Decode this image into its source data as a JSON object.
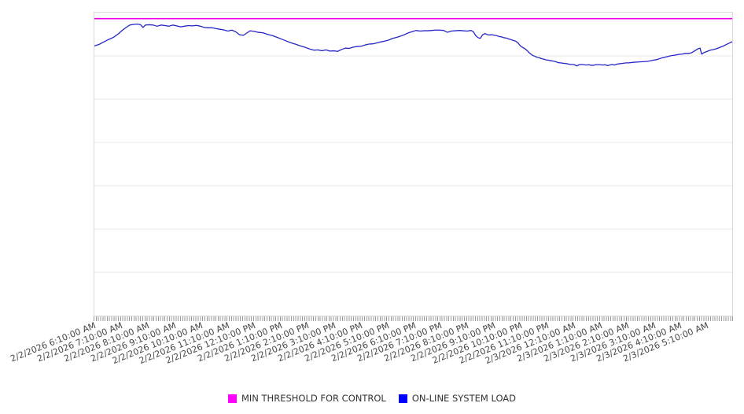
{
  "colors": {
    "background": "#ffffff",
    "grid": "#e9e9e9",
    "axis_border": "#d9d9d9",
    "minor_tick": "#9a9a9a",
    "axis_label": "#474747",
    "legend_text": "#333333",
    "threshold_line": "#ee00ee",
    "load_line": "#2525c9",
    "legend_swatch_threshold": "#ff00ff",
    "legend_swatch_load": "#0000ff"
  },
  "legend": {
    "items": [
      {
        "label": "MIN THRESHOLD FOR CONTROL",
        "color": "#ff00ff"
      },
      {
        "label": "ON-LINE SYSTEM LOAD",
        "color": "#0000ff"
      }
    ]
  },
  "chart_data": {
    "type": "line",
    "title": "",
    "xlabel": "",
    "ylabel": "",
    "legend_position": "bottom-center",
    "grid": "horizontal-only",
    "y_axis": {
      "tick_labels_visible": false,
      "grid_divisions": 7,
      "range_pct": [
        0,
        100
      ]
    },
    "x_axis": {
      "tick_rotation_deg": -22,
      "minor_ticks_per_hour": 12,
      "hours_span": 24,
      "labels": [
        "2/2/2026 6:10:00 AM",
        "2/2/2026 7:10:00 AM",
        "2/2/2026 8:10:00 AM",
        "2/2/2026 9:10:00 AM",
        "2/2/2026 10:10:00 AM",
        "2/2/2026 11:10:00 AM",
        "2/2/2026 12:10:00 PM",
        "2/2/2026 1:10:00 PM",
        "2/2/2026 2:10:00 PM",
        "2/2/2026 3:10:00 PM",
        "2/2/2026 4:10:00 PM",
        "2/2/2026 5:10:00 PM",
        "2/2/2026 6:10:00 PM",
        "2/2/2026 7:10:00 PM",
        "2/2/2026 8:10:00 PM",
        "2/2/2026 9:10:00 PM",
        "2/2/2026 10:10:00 PM",
        "2/2/2026 11:10:00 PM",
        "2/3/2026 12:10:00 AM",
        "2/3/2026 1:10:00 AM",
        "2/3/2026 2:10:00 AM",
        "2/3/2026 3:10:00 AM",
        "2/3/2026 4:10:00 AM",
        "2/3/2026 5:10:00 AM"
      ]
    },
    "series": [
      {
        "name": "MIN THRESHOLD FOR CONTROL",
        "type": "threshold",
        "color": "#ee00ee",
        "value_pct": 98.0,
        "note": "horizontal line; y-axis has no printed scale, values are percent of plot height from bottom"
      },
      {
        "name": "ON-LINE SYSTEM LOAD",
        "type": "line",
        "color": "#2525c9",
        "unit": "pct of plot height (hours since 6:10 AM 2/2/2026, est. from pixels)",
        "points": [
          [
            0,
            89.0
          ],
          [
            0.18,
            89.5
          ],
          [
            0.35,
            90.3
          ],
          [
            0.53,
            91.1
          ],
          [
            0.71,
            91.8
          ],
          [
            0.89,
            92.9
          ],
          [
            1.06,
            94.2
          ],
          [
            1.21,
            95.2
          ],
          [
            1.33,
            95.9
          ],
          [
            1.48,
            96.1
          ],
          [
            1.62,
            96.2
          ],
          [
            1.74,
            96.0
          ],
          [
            1.83,
            95.1
          ],
          [
            1.92,
            95.9
          ],
          [
            2.07,
            96.0
          ],
          [
            2.21,
            95.9
          ],
          [
            2.36,
            95.5
          ],
          [
            2.51,
            95.9
          ],
          [
            2.66,
            95.7
          ],
          [
            2.8,
            95.5
          ],
          [
            2.95,
            95.9
          ],
          [
            3.1,
            95.6
          ],
          [
            3.25,
            95.3
          ],
          [
            3.39,
            95.5
          ],
          [
            3.54,
            95.7
          ],
          [
            3.69,
            95.6
          ],
          [
            3.84,
            95.8
          ],
          [
            3.99,
            95.5
          ],
          [
            4.13,
            95.1
          ],
          [
            4.28,
            95.0
          ],
          [
            4.43,
            95.0
          ],
          [
            4.58,
            94.7
          ],
          [
            4.72,
            94.5
          ],
          [
            4.87,
            94.3
          ],
          [
            5.02,
            93.9
          ],
          [
            5.17,
            94.2
          ],
          [
            5.31,
            93.7
          ],
          [
            5.46,
            92.7
          ],
          [
            5.61,
            92.5
          ],
          [
            5.76,
            93.4
          ],
          [
            5.87,
            94.0
          ],
          [
            6.02,
            93.8
          ],
          [
            6.17,
            93.5
          ],
          [
            6.35,
            93.3
          ],
          [
            6.52,
            92.8
          ],
          [
            6.7,
            92.4
          ],
          [
            6.88,
            91.8
          ],
          [
            7.06,
            91.2
          ],
          [
            7.23,
            90.6
          ],
          [
            7.41,
            90.0
          ],
          [
            7.59,
            89.5
          ],
          [
            7.76,
            89.0
          ],
          [
            7.94,
            88.5
          ],
          [
            8.12,
            87.9
          ],
          [
            8.27,
            87.6
          ],
          [
            8.41,
            87.7
          ],
          [
            8.56,
            87.4
          ],
          [
            8.71,
            87.7
          ],
          [
            8.86,
            87.3
          ],
          [
            9.0,
            87.4
          ],
          [
            9.15,
            87.2
          ],
          [
            9.3,
            87.8
          ],
          [
            9.45,
            88.3
          ],
          [
            9.59,
            88.2
          ],
          [
            9.74,
            88.6
          ],
          [
            9.89,
            88.8
          ],
          [
            10.04,
            88.9
          ],
          [
            10.18,
            89.3
          ],
          [
            10.33,
            89.6
          ],
          [
            10.48,
            89.7
          ],
          [
            10.63,
            90.0
          ],
          [
            10.77,
            90.3
          ],
          [
            10.92,
            90.6
          ],
          [
            11.07,
            90.9
          ],
          [
            11.22,
            91.5
          ],
          [
            11.37,
            91.8
          ],
          [
            11.51,
            92.2
          ],
          [
            11.66,
            92.7
          ],
          [
            11.81,
            93.3
          ],
          [
            11.96,
            93.7
          ],
          [
            12.1,
            94.1
          ],
          [
            12.25,
            93.9
          ],
          [
            12.4,
            94.0
          ],
          [
            12.55,
            94.0
          ],
          [
            12.69,
            94.1
          ],
          [
            12.84,
            94.2
          ],
          [
            12.99,
            94.2
          ],
          [
            13.14,
            94.1
          ],
          [
            13.28,
            93.5
          ],
          [
            13.43,
            93.9
          ],
          [
            13.58,
            94.0
          ],
          [
            13.73,
            94.1
          ],
          [
            13.87,
            94.0
          ],
          [
            14.02,
            93.9
          ],
          [
            14.17,
            94.1
          ],
          [
            14.26,
            93.7
          ],
          [
            14.35,
            92.4
          ],
          [
            14.44,
            91.7
          ],
          [
            14.52,
            91.5
          ],
          [
            14.61,
            92.7
          ],
          [
            14.7,
            93.1
          ],
          [
            14.79,
            92.7
          ],
          [
            14.88,
            92.6
          ],
          [
            14.97,
            92.7
          ],
          [
            15.06,
            92.5
          ],
          [
            15.14,
            92.4
          ],
          [
            15.23,
            92.1
          ],
          [
            15.32,
            92.0
          ],
          [
            15.41,
            91.7
          ],
          [
            15.5,
            91.6
          ],
          [
            15.59,
            91.3
          ],
          [
            15.67,
            91.1
          ],
          [
            15.76,
            90.8
          ],
          [
            15.85,
            90.6
          ],
          [
            15.94,
            90.0
          ],
          [
            16.03,
            89.0
          ],
          [
            16.12,
            88.5
          ],
          [
            16.21,
            88.0
          ],
          [
            16.3,
            87.3
          ],
          [
            16.38,
            86.6
          ],
          [
            16.47,
            86.0
          ],
          [
            16.56,
            85.6
          ],
          [
            16.65,
            85.3
          ],
          [
            16.74,
            85.1
          ],
          [
            16.83,
            84.8
          ],
          [
            16.92,
            84.6
          ],
          [
            17.0,
            84.4
          ],
          [
            17.09,
            84.3
          ],
          [
            17.18,
            84.1
          ],
          [
            17.27,
            84.0
          ],
          [
            17.36,
            83.8
          ],
          [
            17.45,
            83.5
          ],
          [
            17.54,
            83.4
          ],
          [
            17.62,
            83.3
          ],
          [
            17.71,
            83.2
          ],
          [
            17.8,
            83.1
          ],
          [
            17.89,
            82.9
          ],
          [
            17.98,
            82.9
          ],
          [
            18.07,
            82.8
          ],
          [
            18.15,
            82.4
          ],
          [
            18.24,
            82.8
          ],
          [
            18.33,
            82.9
          ],
          [
            18.42,
            82.8
          ],
          [
            18.51,
            82.7
          ],
          [
            18.6,
            82.8
          ],
          [
            18.69,
            82.6
          ],
          [
            18.77,
            82.6
          ],
          [
            18.86,
            82.8
          ],
          [
            18.95,
            82.8
          ],
          [
            19.04,
            82.8
          ],
          [
            19.13,
            82.7
          ],
          [
            19.22,
            82.8
          ],
          [
            19.31,
            82.5
          ],
          [
            19.39,
            82.7
          ],
          [
            19.48,
            82.9
          ],
          [
            19.57,
            82.7
          ],
          [
            19.66,
            83.0
          ],
          [
            19.75,
            83.1
          ],
          [
            19.84,
            83.2
          ],
          [
            19.93,
            83.3
          ],
          [
            20.01,
            83.4
          ],
          [
            20.1,
            83.4
          ],
          [
            20.28,
            83.6
          ],
          [
            20.46,
            83.7
          ],
          [
            20.63,
            83.8
          ],
          [
            20.81,
            83.9
          ],
          [
            20.99,
            84.2
          ],
          [
            21.17,
            84.5
          ],
          [
            21.34,
            85.0
          ],
          [
            21.52,
            85.4
          ],
          [
            21.7,
            85.8
          ],
          [
            21.87,
            86.0
          ],
          [
            21.99,
            86.2
          ],
          [
            22.11,
            86.3
          ],
          [
            22.23,
            86.5
          ],
          [
            22.35,
            86.5
          ],
          [
            22.46,
            86.7
          ],
          [
            22.58,
            87.3
          ],
          [
            22.7,
            88.0
          ],
          [
            22.79,
            88.3
          ],
          [
            22.85,
            86.3
          ],
          [
            22.94,
            86.8
          ],
          [
            23.06,
            87.2
          ],
          [
            23.17,
            87.6
          ],
          [
            23.29,
            87.8
          ],
          [
            23.41,
            88.1
          ],
          [
            23.53,
            88.5
          ],
          [
            23.65,
            88.9
          ],
          [
            23.76,
            89.4
          ],
          [
            23.88,
            89.9
          ],
          [
            24.0,
            90.4
          ]
        ]
      }
    ]
  }
}
